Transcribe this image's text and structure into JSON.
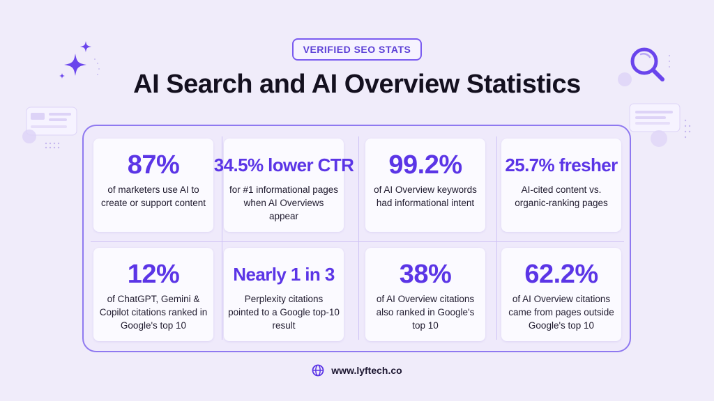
{
  "header": {
    "badge": "VERIFIED SEO STATS",
    "title": "AI Search and AI Overview Statistics"
  },
  "stats": [
    {
      "value": "87%",
      "desc": "of marketers use AI to create or support content"
    },
    {
      "value": "34.5% lower CTR",
      "desc": "for #1 informational pages when AI Overviews appear"
    },
    {
      "value": "99.2%",
      "desc": "of AI Overview keywords had informational intent"
    },
    {
      "value": "25.7% fresher",
      "desc": "AI-cited content vs. organic-ranking pages"
    },
    {
      "value": "12%",
      "desc": "of ChatGPT, Gemini & Copilot citations ranked in Google's top 10"
    },
    {
      "value": "Nearly 1 in 3",
      "desc": "Perplexity citations pointed to a Google top-10 result"
    },
    {
      "value": "38%",
      "desc": "of AI Overview citations also ranked in Google's top 10"
    },
    {
      "value": "62.2%",
      "desc": "of AI Overview citations came from pages outside Google's top 10"
    }
  ],
  "footer": {
    "url": "www.lyftech.co",
    "icon": "globe-icon"
  },
  "colors": {
    "accent": "#5b35e6",
    "background": "#f0ecfa",
    "border": "#8f79f0"
  },
  "icons": [
    "sparkle-icon",
    "magnifier-icon",
    "globe-icon"
  ]
}
